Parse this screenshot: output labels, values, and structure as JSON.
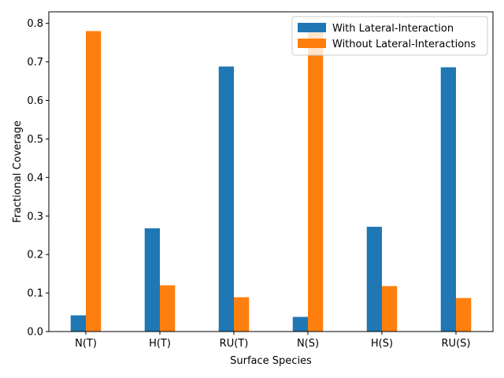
{
  "chart_data": {
    "type": "bar",
    "title": "",
    "xlabel": "Surface Species",
    "ylabel": "Fractional Coverage",
    "categories": [
      "N(T)",
      "H(T)",
      "RU(T)",
      "N(S)",
      "H(S)",
      "RU(S)"
    ],
    "series": [
      {
        "name": "With Lateral-Interaction",
        "color": "#1f77b4",
        "values": [
          0.042,
          0.268,
          0.688,
          0.038,
          0.272,
          0.686
        ]
      },
      {
        "name": "Without Lateral-Interactions",
        "color": "#ff7f0e",
        "values": [
          0.78,
          0.12,
          0.089,
          0.79,
          0.118,
          0.087
        ]
      }
    ],
    "ylim": [
      0,
      0.83
    ],
    "yticks": [
      "0.0",
      "0.1",
      "0.2",
      "0.3",
      "0.4",
      "0.5",
      "0.6",
      "0.7",
      "0.8"
    ],
    "grid": false,
    "legend": "top-right"
  }
}
